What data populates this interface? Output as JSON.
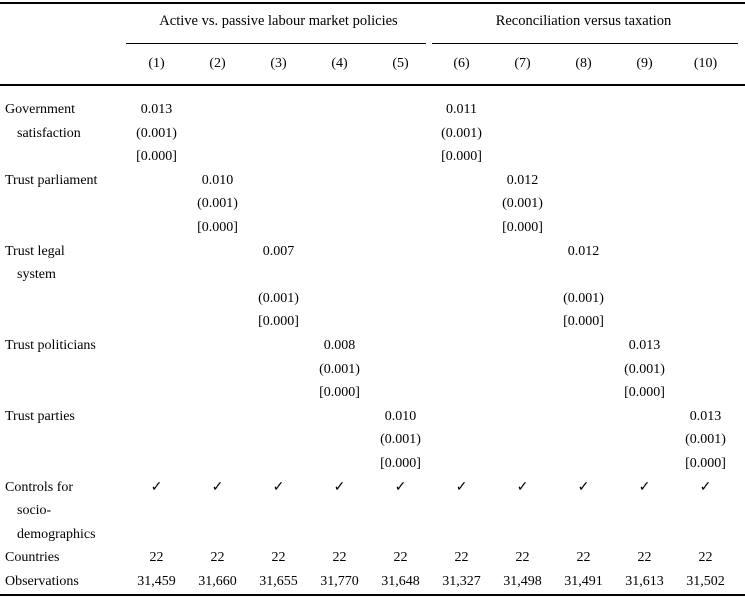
{
  "page": {
    "background_color": "#ffffff",
    "text_color": "#000000"
  },
  "table": {
    "group_headers": [
      {
        "label": "Active vs. passive labour market policies",
        "columns": "1-5"
      },
      {
        "label": "Reconciliation versus taxation",
        "columns": "6-10"
      }
    ],
    "column_headers": [
      "(1)",
      "(2)",
      "(3)",
      "(4)",
      "(5)",
      "(6)",
      "(7)",
      "(8)",
      "(9)",
      "(10)"
    ],
    "checkmark_glyph": "✓",
    "rows": [
      {
        "label": "Government",
        "indent": false,
        "cells": [
          "0.013",
          "",
          "",
          "",
          "",
          "0.011",
          "",
          "",
          "",
          ""
        ]
      },
      {
        "label": "satisfaction",
        "indent": true,
        "cells": [
          "(0.001)",
          "",
          "",
          "",
          "",
          "(0.001)",
          "",
          "",
          "",
          ""
        ]
      },
      {
        "label": "",
        "indent": false,
        "cells": [
          "[0.000]",
          "",
          "",
          "",
          "",
          "[0.000]",
          "",
          "",
          "",
          ""
        ]
      },
      {
        "label": "Trust parliament",
        "indent": false,
        "cells": [
          "",
          "0.010",
          "",
          "",
          "",
          "",
          "0.012",
          "",
          "",
          ""
        ]
      },
      {
        "label": "",
        "indent": false,
        "cells": [
          "",
          "(0.001)",
          "",
          "",
          "",
          "",
          "(0.001)",
          "",
          "",
          ""
        ]
      },
      {
        "label": "",
        "indent": false,
        "cells": [
          "",
          "[0.000]",
          "",
          "",
          "",
          "",
          "[0.000]",
          "",
          "",
          ""
        ]
      },
      {
        "label": "Trust legal",
        "indent": false,
        "cells": [
          "",
          "",
          "0.007",
          "",
          "",
          "",
          "",
          "0.012",
          "",
          ""
        ]
      },
      {
        "label": "system",
        "indent": true,
        "cells": [
          "",
          "",
          "",
          "",
          "",
          "",
          "",
          "",
          "",
          ""
        ]
      },
      {
        "label": "",
        "indent": false,
        "cells": [
          "",
          "",
          "(0.001)",
          "",
          "",
          "",
          "",
          "(0.001)",
          "",
          ""
        ]
      },
      {
        "label": "",
        "indent": false,
        "cells": [
          "",
          "",
          "[0.000]",
          "",
          "",
          "",
          "",
          "[0.000]",
          "",
          ""
        ]
      },
      {
        "label": "Trust politicians",
        "indent": false,
        "cells": [
          "",
          "",
          "",
          "0.008",
          "",
          "",
          "",
          "",
          "0.013",
          ""
        ]
      },
      {
        "label": "",
        "indent": false,
        "cells": [
          "",
          "",
          "",
          "(0.001)",
          "",
          "",
          "",
          "",
          "(0.001)",
          ""
        ]
      },
      {
        "label": "",
        "indent": false,
        "cells": [
          "",
          "",
          "",
          "[0.000]",
          "",
          "",
          "",
          "",
          "[0.000]",
          ""
        ]
      },
      {
        "label": "Trust parties",
        "indent": false,
        "cells": [
          "",
          "",
          "",
          "",
          "0.010",
          "",
          "",
          "",
          "",
          "0.013"
        ]
      },
      {
        "label": "",
        "indent": false,
        "cells": [
          "",
          "",
          "",
          "",
          "(0.001)",
          "",
          "",
          "",
          "",
          "(0.001)"
        ]
      },
      {
        "label": "",
        "indent": false,
        "cells": [
          "",
          "",
          "",
          "",
          "[0.000]",
          "",
          "",
          "",
          "",
          "[0.000]"
        ]
      },
      {
        "label": "Controls for",
        "indent": false,
        "cells": [
          "✓",
          "✓",
          "✓",
          "✓",
          "✓",
          "✓",
          "✓",
          "✓",
          "✓",
          "✓"
        ]
      },
      {
        "label": "socio-",
        "indent": true,
        "cells": [
          "",
          "",
          "",
          "",
          "",
          "",
          "",
          "",
          "",
          ""
        ]
      },
      {
        "label": "demographics",
        "indent": true,
        "cells": [
          "",
          "",
          "",
          "",
          "",
          "",
          "",
          "",
          "",
          ""
        ]
      },
      {
        "label": "Countries",
        "indent": false,
        "cells": [
          "22",
          "22",
          "22",
          "22",
          "22",
          "22",
          "22",
          "22",
          "22",
          "22"
        ]
      },
      {
        "label": "Observations",
        "indent": false,
        "cells": [
          "31,459",
          "31,660",
          "31,655",
          "31,770",
          "31,648",
          "31,327",
          "31,498",
          "31,491",
          "31,613",
          "31,502"
        ]
      }
    ]
  }
}
